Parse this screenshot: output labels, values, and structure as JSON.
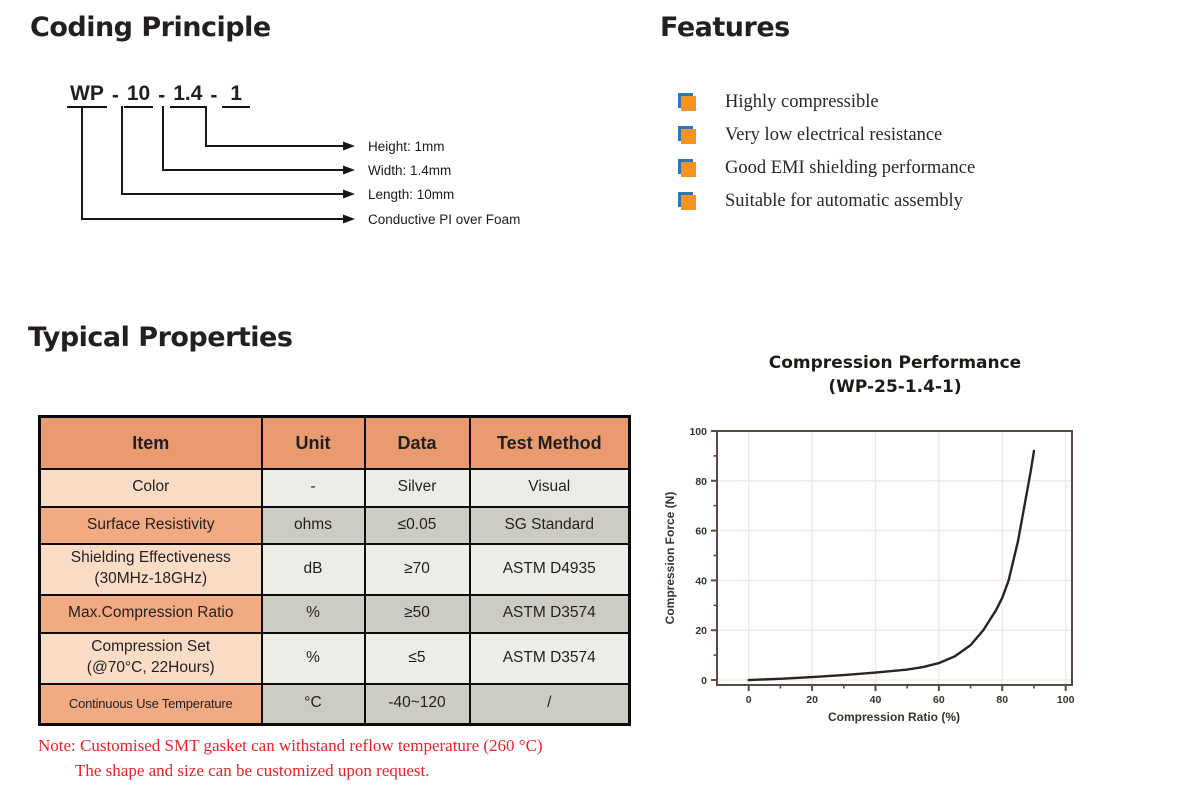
{
  "coding_principle": {
    "title": "Coding Principle",
    "code_segments": [
      "WP",
      "10",
      "1.4",
      "1"
    ],
    "separator": "-",
    "branches": [
      {
        "label": "Height: 1mm"
      },
      {
        "label": "Width: 1.4mm"
      },
      {
        "label": "Length: 10mm"
      },
      {
        "label": "Conductive PI over Foam"
      }
    ]
  },
  "features": {
    "title": "Features",
    "items": [
      "Highly compressible",
      "Very low electrical resistance",
      "Good EMI shielding performance",
      "Suitable for automatic assembly"
    ],
    "bullet_colors": {
      "orange": "#f6921e",
      "blue": "#2e76b5"
    }
  },
  "properties": {
    "title": "Typical Properties",
    "table": {
      "headers": [
        "Item",
        "Unit",
        "Data",
        "Test Method"
      ],
      "rows": [
        {
          "item": "Color",
          "unit": "-",
          "data": "Silver",
          "method": "Visual"
        },
        {
          "item": "Surface Resistivity",
          "unit": "ohms",
          "data": "≤0.05",
          "method": "SG Standard"
        },
        {
          "item": "Shielding Effectiveness\n(30MHz-18GHz)",
          "unit": "dB",
          "data": "≥70",
          "method": "ASTM D4935"
        },
        {
          "item": "Max.Compression Ratio",
          "unit": "%",
          "data": "≥50",
          "method": "ASTM D3574"
        },
        {
          "item": "Compression Set\n(@70°C, 22Hours)",
          "unit": "%",
          "data": "≤5",
          "method": "ASTM D3574"
        },
        {
          "item": "Continuous Use Temperature",
          "unit": "°C",
          "data": "-40~120",
          "method": "/"
        }
      ],
      "colors": {
        "header_bg": "#ea9a6f",
        "item_light": "#fbdcc6",
        "item_dark": "#f2aa82",
        "cell_light": "#ededE8",
        "cell_dark": "#ccccc5"
      }
    }
  },
  "note": {
    "line1": "Note: Customised SMT gasket can withstand reflow temperature (260 °C)",
    "line2": "The shape and size can be customized upon request.",
    "color": "#ec2227"
  },
  "chart_data": {
    "type": "line",
    "title": "Compression Performance",
    "subtitle": "(WP-25-1.4-1)",
    "xlabel": "Compression Ratio (%)",
    "ylabel": "Compression Force (N)",
    "xlim": [
      -10,
      102
    ],
    "ylim": [
      -2,
      100
    ],
    "xticks": [
      0,
      20,
      40,
      60,
      80,
      100
    ],
    "yticks": [
      0,
      20,
      40,
      60,
      80,
      100
    ],
    "minor_xticks": [
      10,
      30,
      50,
      70,
      90
    ],
    "minor_yticks": [
      10,
      30,
      50,
      70,
      90
    ],
    "grid": true,
    "legend": "none",
    "series": [
      {
        "name": "WP-25-1.4-1",
        "x": [
          0,
          10,
          20,
          30,
          40,
          50,
          55,
          60,
          65,
          70,
          74,
          78,
          80,
          82,
          85,
          87,
          89,
          90
        ],
        "y": [
          0,
          0.5,
          1.2,
          2,
          3,
          4.2,
          5.2,
          6.8,
          9.5,
          14,
          20,
          28,
          33,
          40,
          56,
          70,
          84,
          92
        ]
      }
    ],
    "colors": {
      "line": "#2b2420",
      "frame": "#5a4a44",
      "grid": "#f1e7e3"
    }
  }
}
